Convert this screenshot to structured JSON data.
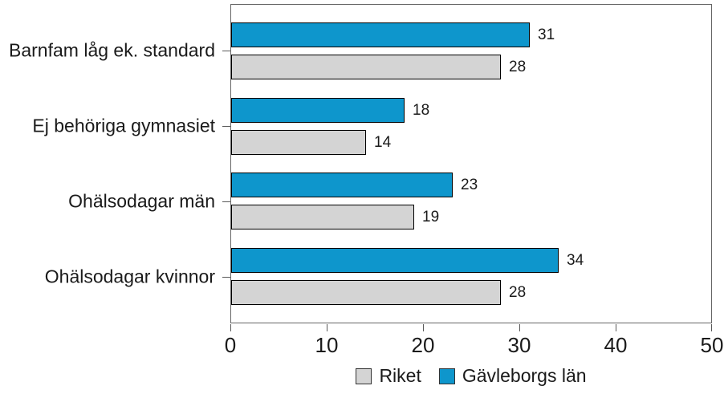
{
  "chart_data": {
    "type": "bar",
    "orientation": "horizontal",
    "title": "",
    "categories": [
      "Barnfam låg ek. standard",
      "Ej behöriga gymnasiet",
      "Ohälsodagar män",
      "Ohälsodagar kvinnor"
    ],
    "series": [
      {
        "name": "Gävleborgs län",
        "color": "#0e96cc",
        "values": [
          31,
          18,
          23,
          34
        ]
      },
      {
        "name": "Riket",
        "color": "#d4d4d4",
        "values": [
          28,
          14,
          19,
          28
        ]
      }
    ],
    "bar_order_in_group": [
      "Gävleborgs län",
      "Riket"
    ],
    "legend": {
      "position": "bottom",
      "entries": [
        {
          "label": "Riket",
          "color": "#d4d4d4"
        },
        {
          "label": "Gävleborgs län",
          "color": "#0e96cc"
        }
      ]
    },
    "xlabel": "",
    "ylabel": "",
    "xlim": [
      0,
      50
    ],
    "xticks": [
      0,
      10,
      20,
      30,
      40,
      50
    ],
    "grid": false,
    "value_labels_shown": true
  }
}
